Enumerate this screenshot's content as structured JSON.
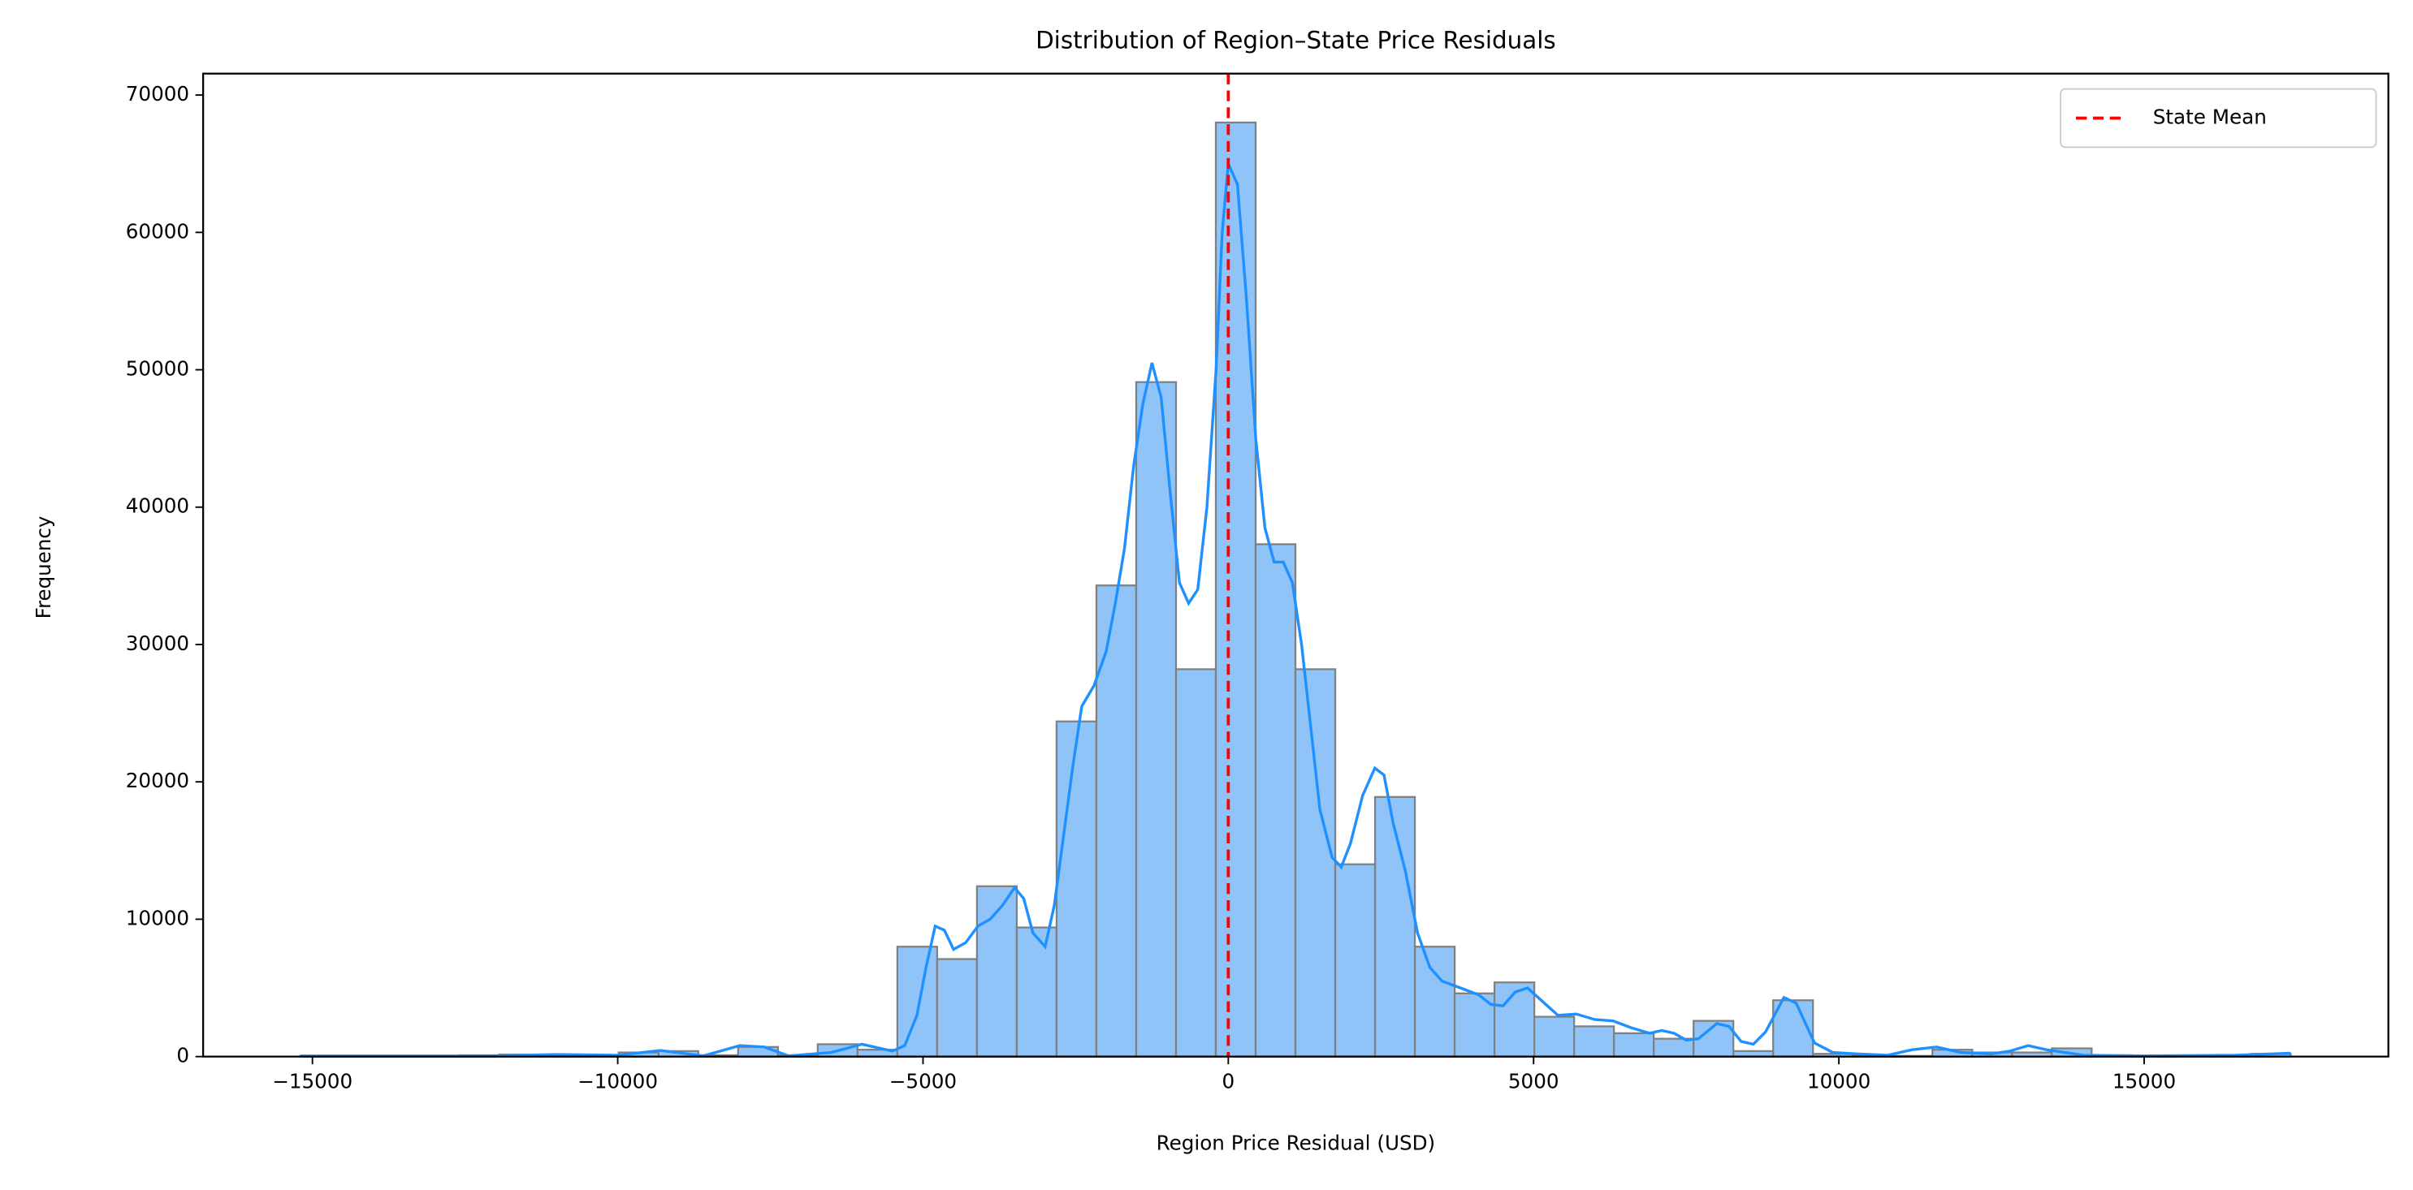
{
  "chart_data": {
    "type": "histogram",
    "title": "Distribution of Region–State Price Residuals",
    "x_label": "Region Price Residual (USD)",
    "y_label": "Frequency",
    "bins": [
      -15200,
      -14548,
      -13896,
      -13244,
      -12592,
      -11940,
      -11288,
      -10636,
      -9984,
      -9332,
      -8680,
      -8028,
      -7376,
      -6724,
      -6072,
      -5420,
      -4768,
      -4116,
      -3464,
      -2812,
      -2160,
      -1508,
      -856,
      -204,
      448,
      1100,
      1752,
      2404,
      3056,
      3708,
      4360,
      5012,
      5664,
      6316,
      6968,
      7620,
      8272,
      8924,
      9576,
      10228,
      10880,
      11532,
      12184,
      12836,
      13488,
      14140,
      14792,
      15444,
      16096,
      16748,
      17400
    ],
    "counts": [
      50,
      50,
      50,
      50,
      100,
      150,
      150,
      100,
      300,
      400,
      100,
      700,
      100,
      900,
      500,
      8000,
      7100,
      12400,
      9400,
      24400,
      34300,
      49100,
      28200,
      68000,
      37300,
      28200,
      14000,
      18900,
      8000,
      4600,
      5400,
      2900,
      2200,
      1700,
      1300,
      2600,
      400,
      4100,
      200,
      100,
      50,
      500,
      300,
      300,
      600,
      100,
      50,
      50,
      50,
      200
    ],
    "color": "#90c4f8",
    "edge_color": "#808080",
    "kde": {
      "color": "#1e90ff",
      "x": [
        -15200,
        -12000,
        -11000,
        -10000,
        -9300,
        -8600,
        -8000,
        -7600,
        -7200,
        -6500,
        -6000,
        -5500,
        -5300,
        -5100,
        -4950,
        -4800,
        -4650,
        -4500,
        -4300,
        -4100,
        -3900,
        -3700,
        -3500,
        -3350,
        -3200,
        -3000,
        -2850,
        -2700,
        -2550,
        -2400,
        -2200,
        -2000,
        -1850,
        -1700,
        -1550,
        -1400,
        -1250,
        -1100,
        -950,
        -800,
        -650,
        -500,
        -350,
        -200,
        -100,
        0,
        150,
        300,
        450,
        600,
        750,
        900,
        1050,
        1200,
        1350,
        1500,
        1700,
        1850,
        2000,
        2200,
        2400,
        2550,
        2700,
        2900,
        3100,
        3300,
        3500,
        3800,
        4100,
        4300,
        4500,
        4700,
        4900,
        5100,
        5400,
        5700,
        6000,
        6300,
        6600,
        6900,
        7100,
        7300,
        7500,
        7700,
        8000,
        8200,
        8400,
        8600,
        8800,
        9100,
        9300,
        9600,
        9900,
        10300,
        10800,
        11200,
        11600,
        12000,
        12500,
        12800,
        13100,
        13400,
        14000,
        15000,
        16500,
        17400
      ],
      "values": [
        50,
        50,
        150,
        100,
        450,
        50,
        800,
        700,
        50,
        300,
        900,
        400,
        800,
        3000,
        6500,
        9500,
        9200,
        7800,
        8300,
        9500,
        10000,
        11000,
        12300,
        11500,
        9000,
        8000,
        11000,
        16000,
        21000,
        25500,
        27000,
        29500,
        33000,
        37000,
        43000,
        47500,
        50500,
        48000,
        41000,
        34500,
        33000,
        34000,
        40000,
        50000,
        60000,
        65000,
        63500,
        55000,
        45000,
        38500,
        36000,
        36000,
        34500,
        30000,
        24000,
        18000,
        14500,
        13800,
        15500,
        19000,
        21000,
        20500,
        17000,
        13500,
        9000,
        6500,
        5500,
        5000,
        4500,
        3800,
        3700,
        4700,
        5000,
        4200,
        3000,
        3100,
        2700,
        2600,
        2100,
        1700,
        1900,
        1700,
        1200,
        1300,
        2400,
        2200,
        1100,
        900,
        1800,
        4300,
        3900,
        1000,
        300,
        200,
        100,
        500,
        700,
        300,
        200,
        400,
        800,
        500,
        100,
        50,
        100,
        250
      ]
    },
    "mean_line": {
      "name": "State Mean",
      "x": 0,
      "color": "#ff0000"
    },
    "legend": "upper right",
    "grid": false,
    "xlim": [
      -16790,
      19000
    ],
    "ylim": [
      0,
      71560
    ],
    "xticks": [
      {
        "value": -15000,
        "label": "−15000"
      },
      {
        "value": -10000,
        "label": "−10000"
      },
      {
        "value": -5000,
        "label": "−5000"
      },
      0,
      5000,
      10000,
      15000
    ],
    "yticks": [
      0,
      10000,
      20000,
      30000,
      40000,
      50000,
      60000,
      70000
    ]
  }
}
